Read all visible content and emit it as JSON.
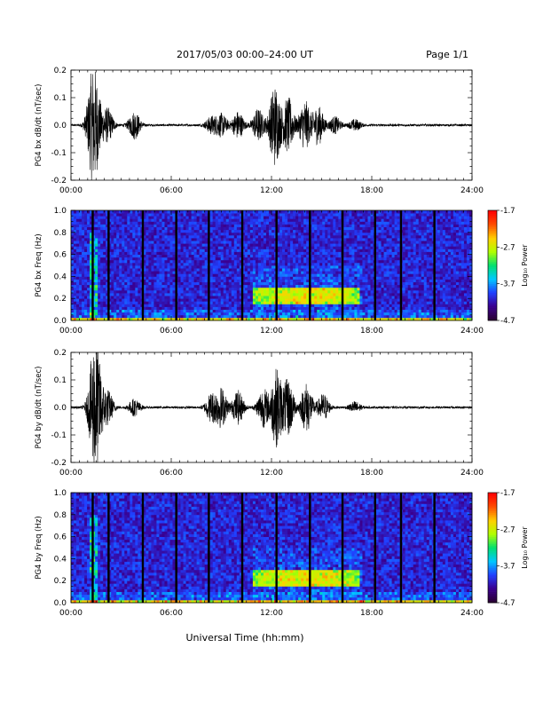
{
  "header": {
    "title": "2017/05/03  00:00–24:00 UT",
    "page": "Page 1/1"
  },
  "xaxis": {
    "label": "Universal Time (hh:mm)",
    "range_hours": [
      0,
      24
    ],
    "tick_labels": [
      "00:00",
      "06:00",
      "12:00",
      "18:00",
      "24:00"
    ]
  },
  "chart_data": [
    {
      "type": "line",
      "panel": "bx-waveform",
      "ylabel": "PG4 bx dB/dt (nT/sec)",
      "ylim": [
        -0.2,
        0.2
      ],
      "ytick_labels": [
        "-0.2",
        "-0.1",
        "0.0",
        "0.1",
        "0.2"
      ],
      "activity": [
        {
          "t": 1.3,
          "amp": 0.18
        },
        {
          "t": 1.55,
          "amp": 0.06
        },
        {
          "t": 2.2,
          "amp": 0.06
        },
        {
          "t": 3.8,
          "amp": 0.05
        },
        {
          "t": 8.4,
          "amp": 0.03
        },
        {
          "t": 9.0,
          "amp": 0.04
        },
        {
          "t": 10.0,
          "amp": 0.05
        },
        {
          "t": 11.2,
          "amp": 0.06
        },
        {
          "t": 12.2,
          "amp": 0.15
        },
        {
          "t": 13.0,
          "amp": 0.1
        },
        {
          "t": 14.0,
          "amp": 0.09
        },
        {
          "t": 14.8,
          "amp": 0.07
        },
        {
          "t": 15.8,
          "amp": 0.03
        },
        {
          "t": 17.0,
          "amp": 0.02
        }
      ]
    },
    {
      "type": "heatmap",
      "panel": "bx-spectrogram",
      "ylabel": "PG4 bx Freq (Hz)",
      "ylim": [
        0.0,
        1.0
      ],
      "ytick_labels": [
        "0.0",
        "0.2",
        "0.4",
        "0.6",
        "0.8",
        "1.0"
      ],
      "colorbar": {
        "label": "Log₁₀ Power",
        "range": [
          -4.7,
          -1.7
        ],
        "tick_labels": [
          "-1.7",
          "-2.7",
          "-3.7",
          "-4.7"
        ]
      },
      "gap_hours": [
        1.3,
        2.25,
        4.3,
        6.3,
        8.25,
        10.25,
        12.3,
        14.3,
        16.25,
        18.2,
        19.75,
        21.75
      ],
      "band": {
        "t_start": 10.9,
        "t_end": 17.3,
        "f_low": 0.15,
        "f_high": 0.3
      }
    },
    {
      "type": "line",
      "panel": "by-waveform",
      "ylabel": "PG4 by dB/dt (nT/sec)",
      "ylim": [
        -0.2,
        0.2
      ],
      "ytick_labels": [
        "-0.2",
        "-0.1",
        "0.0",
        "0.1",
        "0.2"
      ],
      "activity": [
        {
          "t": 1.4,
          "amp": 0.2
        },
        {
          "t": 1.6,
          "amp": 0.08
        },
        {
          "t": 2.2,
          "amp": 0.06
        },
        {
          "t": 3.8,
          "amp": 0.03
        },
        {
          "t": 8.4,
          "amp": 0.05
        },
        {
          "t": 9.0,
          "amp": 0.07
        },
        {
          "t": 10.0,
          "amp": 0.06
        },
        {
          "t": 11.5,
          "amp": 0.07
        },
        {
          "t": 12.3,
          "amp": 0.14
        },
        {
          "t": 13.0,
          "amp": 0.1
        },
        {
          "t": 14.1,
          "amp": 0.09
        },
        {
          "t": 15.1,
          "amp": 0.05
        },
        {
          "t": 17.0,
          "amp": 0.02
        }
      ]
    },
    {
      "type": "heatmap",
      "panel": "by-spectrogram",
      "ylabel": "PG4 by Freq (Hz)",
      "ylim": [
        0.0,
        1.0
      ],
      "ytick_labels": [
        "0.0",
        "0.2",
        "0.4",
        "0.6",
        "0.8",
        "1.0"
      ],
      "colorbar": {
        "label": "Log₁₀ Power",
        "range": [
          -4.7,
          -1.7
        ],
        "tick_labels": [
          "-1.7",
          "-2.7",
          "-3.7",
          "-4.7"
        ]
      },
      "gap_hours": [
        1.3,
        2.25,
        4.3,
        6.3,
        8.25,
        10.25,
        12.3,
        14.3,
        16.25,
        18.2,
        19.75,
        21.75
      ],
      "band": {
        "t_start": 10.9,
        "t_end": 17.3,
        "f_low": 0.15,
        "f_high": 0.3
      }
    }
  ],
  "colors": {
    "spectrogram_scale": [
      "#2a0033",
      "#3a0090",
      "#2040ff",
      "#00c8ff",
      "#00e070",
      "#b0ff00",
      "#ffd000",
      "#ff5000",
      "#ff0000"
    ]
  }
}
